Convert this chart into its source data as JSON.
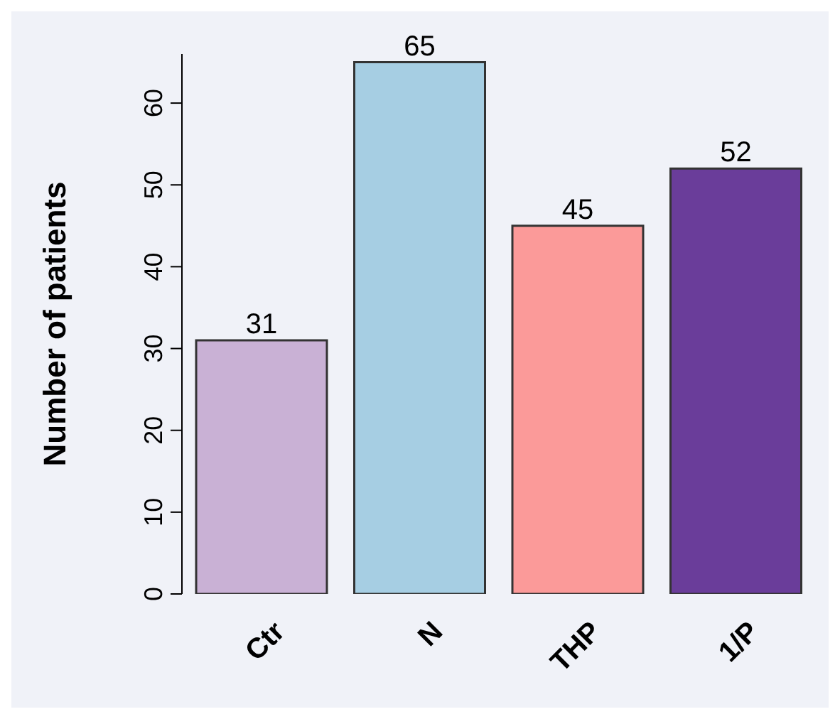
{
  "chart_data": {
    "type": "bar",
    "ylabel": "Number of patients",
    "categories": [
      "Ctr",
      "N",
      "THP",
      "1/P"
    ],
    "values": [
      31,
      65,
      45,
      52
    ],
    "colors": [
      "#c9b1d5",
      "#a6cee3",
      "#fb9a99",
      "#6a3d9a"
    ],
    "ylim": [
      0,
      66
    ],
    "yticks": [
      0,
      10,
      20,
      30,
      40,
      50,
      60
    ],
    "data_labels": true,
    "grid": false,
    "legend": false
  }
}
